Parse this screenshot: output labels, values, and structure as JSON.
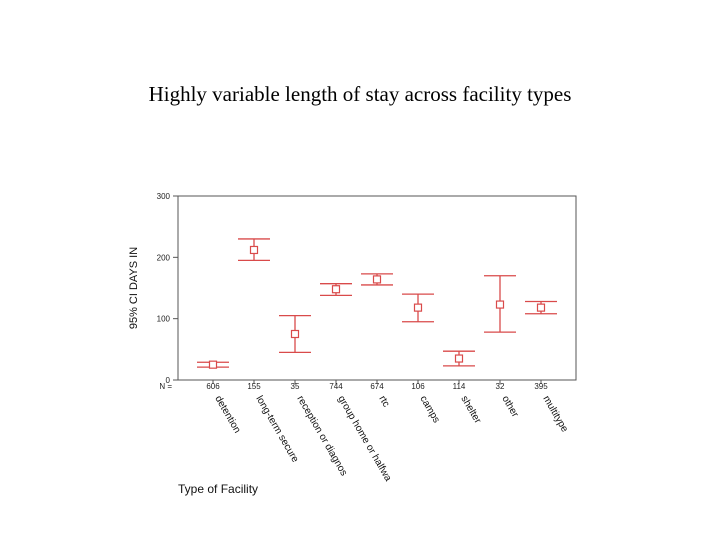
{
  "slide": {
    "title": "Highly variable length of stay across facility types"
  },
  "chart_data": {
    "type": "errorbar",
    "ylabel": "95% CI DAYS IN",
    "xlabel": "Type of Facility",
    "n_label": "N =",
    "ylim": [
      0,
      300
    ],
    "yticks": [
      0,
      100,
      200,
      300
    ],
    "grid": false,
    "color": "#d94a4a",
    "categories": [
      "detention",
      "long-term secure",
      "reception or diagnos",
      "group home or halfwa",
      "rtc",
      "camps",
      "shelter",
      "other",
      "multitype"
    ],
    "n": [
      "606",
      "155",
      "35",
      "744",
      "674",
      "106",
      "114",
      "32",
      "395"
    ],
    "mean": [
      25,
      212,
      75,
      148,
      164,
      118,
      35,
      123,
      118
    ],
    "lower": [
      21,
      195,
      45,
      138,
      155,
      95,
      23,
      78,
      108
    ],
    "upper": [
      29,
      230,
      105,
      157,
      173,
      140,
      47,
      170,
      128
    ]
  }
}
